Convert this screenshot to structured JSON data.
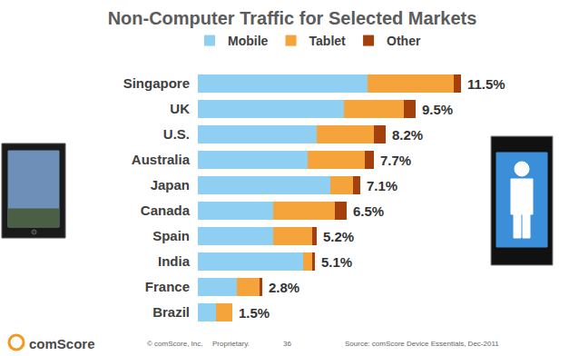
{
  "chart_data": {
    "type": "bar",
    "title": "Non-Computer Traffic for Selected Markets",
    "orientation": "horizontal",
    "stacked": true,
    "legend": "top",
    "grid": false,
    "tick_labels": "y",
    "categories": [
      "Singapore",
      "UK",
      "U.S.",
      "Australia",
      "Japan",
      "Canada",
      "Spain",
      "India",
      "France",
      "Brazil"
    ],
    "xlim": [
      0,
      11.5
    ],
    "series": [
      {
        "name": "Mobile",
        "color": "#8fd0f2",
        "values": [
          7.4,
          6.4,
          5.2,
          4.8,
          5.8,
          3.3,
          3.3,
          4.6,
          1.7,
          0.8
        ]
      },
      {
        "name": "Tablet",
        "color": "#f5a33b",
        "values": [
          3.8,
          2.6,
          2.5,
          2.5,
          1.0,
          2.7,
          1.7,
          0.4,
          1.0,
          0.7
        ]
      },
      {
        "name": "Other",
        "color": "#a3400e",
        "values": [
          0.3,
          0.5,
          0.5,
          0.4,
          0.3,
          0.5,
          0.2,
          0.1,
          0.1,
          0.0
        ]
      }
    ],
    "totals": {
      "values": [
        11.5,
        9.5,
        8.2,
        7.7,
        7.1,
        6.5,
        5.2,
        5.1,
        2.8,
        1.5
      ],
      "value_labels": [
        "11.5%",
        "9.5%",
        "8.2%",
        "7.7%",
        "7.1%",
        "6.5%",
        "5.2%",
        "5.1%",
        "2.8%",
        "1.5%"
      ]
    },
    "footer": {
      "logo": "comScore",
      "copyright": "© comScore, Inc.",
      "proprietary": "Proprietary.",
      "page": 36,
      "source": "Source: comScore Device Essentials, Dec-2011"
    }
  }
}
